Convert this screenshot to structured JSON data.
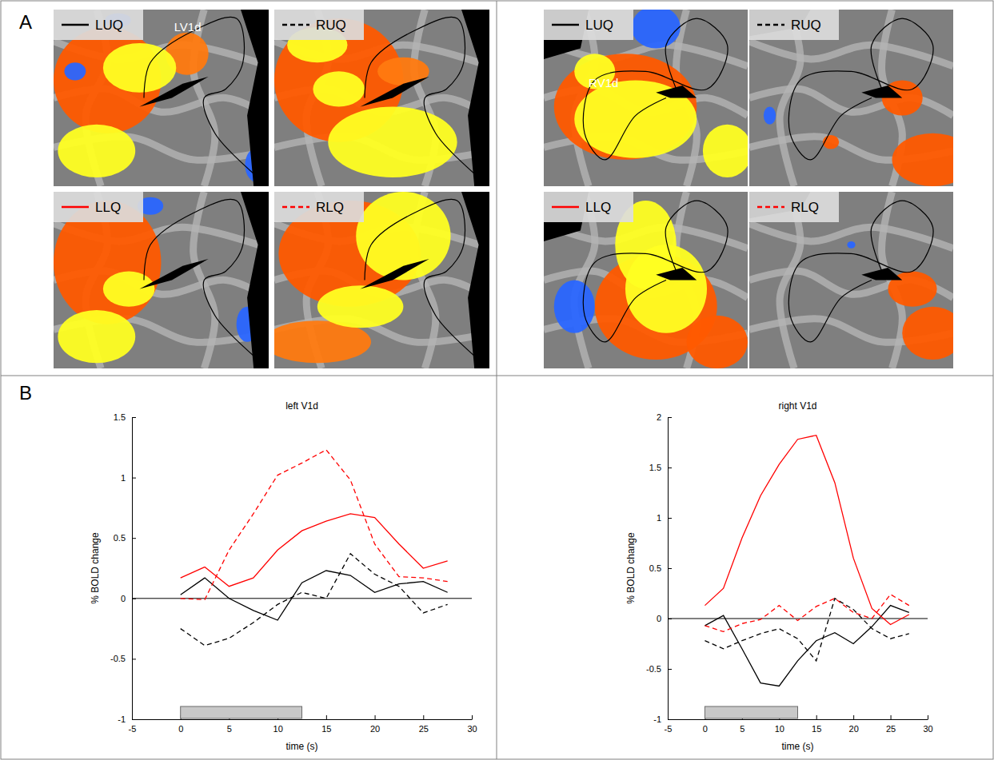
{
  "figure": {
    "panel_labels": [
      "A",
      "B"
    ],
    "map_labels": [
      "LV1d",
      "RV1d"
    ]
  },
  "chart_data": [
    {
      "type": "line",
      "title": "left V1d",
      "x_label": "time (s)",
      "y_label": "% BOLD change",
      "x": [
        0,
        2.5,
        5,
        7.5,
        10,
        12.5,
        15,
        17.5,
        20,
        22.5,
        25,
        27.5
      ],
      "xlim": [
        -5,
        30
      ],
      "xticks": [
        -5,
        0,
        5,
        10,
        15,
        20,
        25,
        30
      ],
      "ylim": [
        -1,
        1.5
      ],
      "yticks": [
        -1,
        -0.5,
        0,
        0.5,
        1,
        1.5
      ],
      "hlines": [
        0
      ],
      "stimulus": [
        0,
        12.5
      ],
      "series": [
        {
          "name": "LUQ",
          "color": "#000000",
          "line_style": "solid",
          "values": [
            0.03,
            0.17,
            0.0,
            -0.1,
            -0.18,
            0.13,
            0.23,
            0.19,
            0.05,
            0.12,
            0.14,
            0.05
          ]
        },
        {
          "name": "RUQ",
          "color": "#000000",
          "line_style": "dashed",
          "values": [
            -0.25,
            -0.39,
            -0.33,
            -0.2,
            -0.05,
            0.05,
            0.0,
            0.37,
            0.2,
            0.1,
            -0.12,
            -0.05
          ]
        },
        {
          "name": "LLQ",
          "color": "#ff0000",
          "line_style": "solid",
          "values": [
            0.17,
            0.26,
            0.1,
            0.17,
            0.4,
            0.56,
            0.64,
            0.7,
            0.67,
            0.45,
            0.25,
            0.31
          ]
        },
        {
          "name": "RLQ",
          "color": "#ff0000",
          "line_style": "dashed",
          "values": [
            0.0,
            -0.01,
            0.4,
            0.7,
            1.02,
            1.12,
            1.23,
            0.98,
            0.45,
            0.18,
            0.17,
            0.14
          ]
        }
      ]
    },
    {
      "type": "line",
      "title": "right V1d",
      "x_label": "time (s)",
      "y_label": "% BOLD change",
      "x": [
        0,
        2.5,
        5,
        7.5,
        10,
        12.5,
        15,
        17.5,
        20,
        22.5,
        25,
        27.5
      ],
      "xlim": [
        -5,
        30
      ],
      "xticks": [
        -5,
        0,
        5,
        10,
        15,
        20,
        25,
        30
      ],
      "ylim": [
        -1,
        2
      ],
      "yticks": [
        -1,
        -0.5,
        0,
        0.5,
        1,
        1.5,
        2
      ],
      "hlines": [
        0
      ],
      "stimulus": [
        0,
        12.5
      ],
      "series": [
        {
          "name": "LUQ",
          "color": "#000000",
          "line_style": "solid",
          "values": [
            -0.07,
            0.03,
            -0.3,
            -0.64,
            -0.67,
            -0.42,
            -0.22,
            -0.14,
            -0.25,
            -0.08,
            0.13,
            0.06
          ]
        },
        {
          "name": "RUQ",
          "color": "#000000",
          "line_style": "dashed",
          "values": [
            -0.22,
            -0.3,
            -0.22,
            -0.15,
            -0.1,
            -0.2,
            -0.42,
            0.2,
            0.09,
            -0.1,
            -0.2,
            -0.15
          ]
        },
        {
          "name": "LLQ",
          "color": "#ff0000",
          "line_style": "solid",
          "values": [
            0.13,
            0.3,
            0.8,
            1.22,
            1.53,
            1.78,
            1.82,
            1.35,
            0.6,
            0.1,
            -0.06,
            0.04
          ]
        },
        {
          "name": "RLQ",
          "color": "#ff0000",
          "line_style": "dashed",
          "values": [
            -0.07,
            -0.13,
            -0.05,
            -0.01,
            0.13,
            -0.02,
            0.12,
            0.2,
            0.06,
            0.0,
            0.24,
            0.13
          ]
        }
      ]
    }
  ]
}
